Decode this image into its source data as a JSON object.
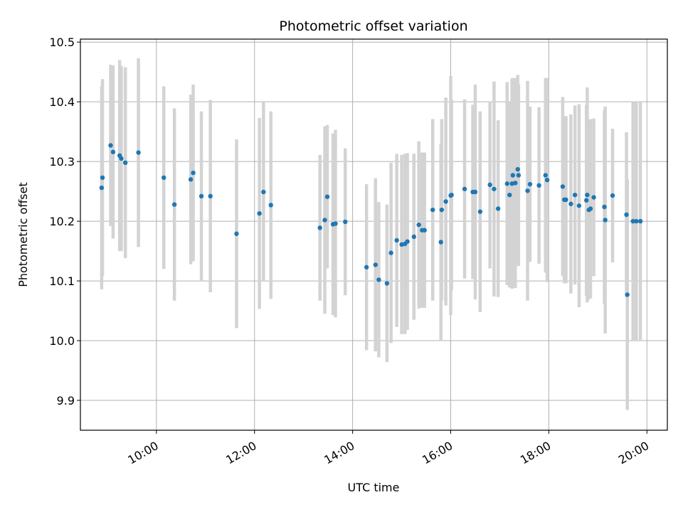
{
  "chart_data": {
    "type": "scatter",
    "title": "Photometric offset variation",
    "xlabel": "UTC time",
    "ylabel": "Photometric offset",
    "xlim": [
      "08:27",
      "20:25"
    ],
    "ylim": [
      9.85,
      10.505
    ],
    "x_ticks": [
      "10:00",
      "12:00",
      "14:00",
      "16:00",
      "18:00",
      "20:00"
    ],
    "y_ticks": [
      "9.9",
      "10.0",
      "10.1",
      "10.2",
      "10.3",
      "10.4",
      "10.5"
    ],
    "grid": true,
    "colors": {
      "point": "#1f77b4",
      "errorbar": "#d3d3d3",
      "grid": "#b0b0b0"
    },
    "series": [
      {
        "x": [
          "08:53",
          "08:54",
          "09:04",
          "09:07",
          "09:15",
          "09:17",
          "09:22",
          "09:38",
          "10:09",
          "10:22",
          "10:42",
          "10:45",
          "10:55",
          "11:06",
          "11:38",
          "12:06",
          "12:11",
          "12:20",
          "13:20",
          "13:26",
          "13:29",
          "13:36",
          "13:39",
          "13:51",
          "14:17",
          "14:28",
          "14:32",
          "14:42",
          "14:47",
          "14:54",
          "15:00",
          "15:04",
          "15:07",
          "15:15",
          "15:21",
          "15:25",
          "15:28",
          "15:38",
          "15:48",
          "15:49",
          "15:54",
          "16:00",
          "16:01",
          "16:17",
          "16:27",
          "16:30",
          "16:36",
          "16:48",
          "16:53",
          "16:58",
          "17:09",
          "17:12",
          "17:15",
          "17:16",
          "17:19",
          "17:22",
          "17:23",
          "17:34",
          "17:37",
          "17:48",
          "17:56",
          "17:58",
          "18:17",
          "18:19",
          "18:21",
          "18:27",
          "18:32",
          "18:37",
          "18:46",
          "18:47",
          "18:49",
          "18:51",
          "18:55",
          "19:08",
          "19:09",
          "19:18",
          "19:35",
          "19:36",
          "19:43",
          "19:47",
          "19:52"
        ],
        "y": [
          10.256,
          10.273,
          10.327,
          10.316,
          10.31,
          10.305,
          10.298,
          10.315,
          10.273,
          10.228,
          10.27,
          10.281,
          10.242,
          10.242,
          10.179,
          10.213,
          10.249,
          10.227,
          10.189,
          10.202,
          10.241,
          10.195,
          10.196,
          10.199,
          10.123,
          10.127,
          10.102,
          10.096,
          10.147,
          10.168,
          10.161,
          10.162,
          10.166,
          10.174,
          10.194,
          10.185,
          10.185,
          10.219,
          10.165,
          10.219,
          10.233,
          10.243,
          10.244,
          10.254,
          10.249,
          10.249,
          10.216,
          10.261,
          10.254,
          10.221,
          10.263,
          10.244,
          10.263,
          10.277,
          10.264,
          10.287,
          10.277,
          10.251,
          10.262,
          10.26,
          10.277,
          10.269,
          10.258,
          10.236,
          10.236,
          10.229,
          10.244,
          10.226,
          10.235,
          10.244,
          10.219,
          10.221,
          10.24,
          10.224,
          10.202,
          10.243,
          10.211,
          10.077,
          10.2,
          10.2,
          10.2
        ],
        "error": [
          0.17,
          0.165,
          0.135,
          0.145,
          0.16,
          0.155,
          0.16,
          0.158,
          0.153,
          0.161,
          0.142,
          0.148,
          0.142,
          0.161,
          0.158,
          0.16,
          0.15,
          0.157,
          0.122,
          0.157,
          0.12,
          0.152,
          0.157,
          0.123,
          0.139,
          0.145,
          0.13,
          0.132,
          0.151,
          0.145,
          0.15,
          0.151,
          0.148,
          0.139,
          0.14,
          0.13,
          0.13,
          0.152,
          0.165,
          0.152,
          0.174,
          0.2,
          0.16,
          0.15,
          0.146,
          0.18,
          0.168,
          0.14,
          0.18,
          0.148,
          0.17,
          0.155,
          0.176,
          0.163,
          0.176,
          0.158,
          0.152,
          0.184,
          0.13,
          0.131,
          0.163,
          0.171,
          0.15,
          0.14,
          0.14,
          0.15,
          0.15,
          0.17,
          0.16,
          0.18,
          0.15,
          0.15,
          0.132,
          0.162,
          0.19,
          0.112,
          0.138,
          0.193,
          0.2,
          0.2,
          0.2
        ]
      }
    ]
  }
}
